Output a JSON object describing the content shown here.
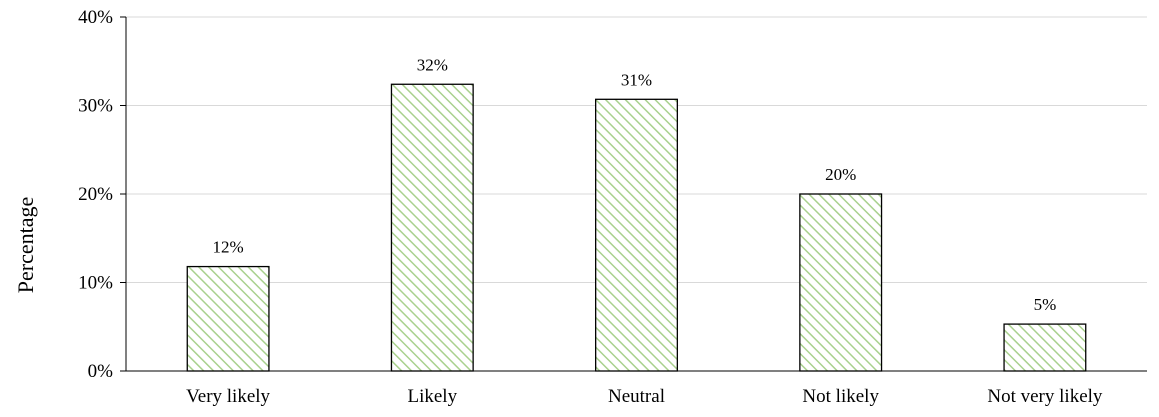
{
  "chart_data": {
    "type": "bar",
    "categories": [
      "Very likely",
      "Likely",
      "Neutral",
      "Not likely",
      "Not very likely"
    ],
    "values": [
      12,
      32,
      31,
      20,
      5
    ],
    "bar_heights": [
      11.8,
      32.4,
      30.7,
      20.0,
      5.3
    ],
    "data_labels": [
      "12%",
      "32%",
      "31%",
      "20%",
      "5%"
    ],
    "title": "",
    "xlabel": "",
    "ylabel": "Percentage",
    "ylim": [
      0,
      40
    ],
    "yticks": [
      0,
      10,
      20,
      30,
      40
    ],
    "ytick_labels": [
      "0%",
      "10%",
      "20%",
      "30%",
      "40%"
    ],
    "grid": "horizontal",
    "legend": "none",
    "colors": {
      "bar_hatch": "#a9d18e",
      "bar_fill": "#ffffff",
      "bar_edge": "#000000",
      "grid": "#d9d9d9"
    }
  }
}
